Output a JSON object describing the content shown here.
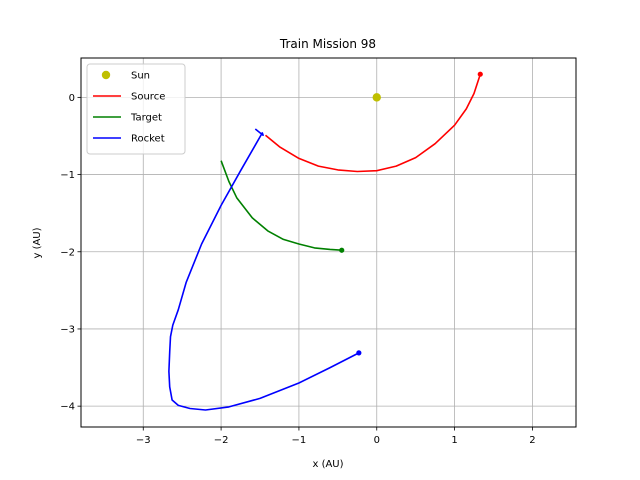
{
  "chart_data": {
    "type": "line",
    "title": "Train Mission 98",
    "xlabel": "x (AU)",
    "ylabel": "y (AU)",
    "xlim": [
      -3.8,
      2.56
    ],
    "ylim": [
      -4.27,
      0.51
    ],
    "xticks": [
      -3,
      -2,
      -1,
      0,
      1,
      2
    ],
    "yticks": [
      0,
      -1,
      -2,
      -3,
      -4
    ],
    "xtick_labels": [
      "−3",
      "−2",
      "−1",
      "0",
      "1",
      "2"
    ],
    "ytick_labels": [
      "0",
      "−1",
      "−2",
      "−3",
      "−4"
    ],
    "grid": true,
    "legend_position": "top-left",
    "series": [
      {
        "name": "Sun",
        "kind": "point",
        "color": "#bfbf00",
        "points": [
          [
            0,
            0
          ]
        ]
      },
      {
        "name": "Source",
        "kind": "line",
        "color": "#ff0000",
        "endpoint_marker": true,
        "points": [
          [
            -1.43,
            -0.49
          ],
          [
            -1.25,
            -0.64
          ],
          [
            -1.0,
            -0.79
          ],
          [
            -0.75,
            -0.89
          ],
          [
            -0.5,
            -0.94
          ],
          [
            -0.25,
            -0.96
          ],
          [
            0.0,
            -0.95
          ],
          [
            0.25,
            -0.89
          ],
          [
            0.5,
            -0.78
          ],
          [
            0.75,
            -0.6
          ],
          [
            1.0,
            -0.36
          ],
          [
            1.15,
            -0.15
          ],
          [
            1.25,
            0.05
          ],
          [
            1.33,
            0.3
          ]
        ]
      },
      {
        "name": "Target",
        "kind": "line",
        "color": "#008000",
        "endpoint_marker": true,
        "points": [
          [
            -2.0,
            -0.82
          ],
          [
            -1.9,
            -1.09
          ],
          [
            -1.8,
            -1.3
          ],
          [
            -1.6,
            -1.56
          ],
          [
            -1.4,
            -1.73
          ],
          [
            -1.2,
            -1.84
          ],
          [
            -1.0,
            -1.9
          ],
          [
            -0.8,
            -1.95
          ],
          [
            -0.6,
            -1.97
          ],
          [
            -0.45,
            -1.98
          ]
        ]
      },
      {
        "name": "Rocket",
        "kind": "line",
        "color": "#0000ff",
        "endpoint_marker": true,
        "points": [
          [
            -1.56,
            -0.41
          ],
          [
            -1.46,
            -0.49
          ],
          [
            -1.47,
            -0.46
          ],
          [
            -1.55,
            -0.6
          ],
          [
            -1.75,
            -0.95
          ],
          [
            -2.0,
            -1.4
          ],
          [
            -2.25,
            -1.9
          ],
          [
            -2.45,
            -2.4
          ],
          [
            -2.55,
            -2.75
          ],
          [
            -2.62,
            -2.95
          ],
          [
            -2.65,
            -3.1
          ],
          [
            -2.66,
            -3.3
          ],
          [
            -2.67,
            -3.55
          ],
          [
            -2.66,
            -3.75
          ],
          [
            -2.63,
            -3.92
          ],
          [
            -2.55,
            -3.99
          ],
          [
            -2.4,
            -4.03
          ],
          [
            -2.2,
            -4.05
          ],
          [
            -1.9,
            -4.01
          ],
          [
            -1.5,
            -3.9
          ],
          [
            -1.0,
            -3.7
          ],
          [
            -0.6,
            -3.5
          ],
          [
            -0.23,
            -3.31
          ]
        ]
      }
    ]
  }
}
